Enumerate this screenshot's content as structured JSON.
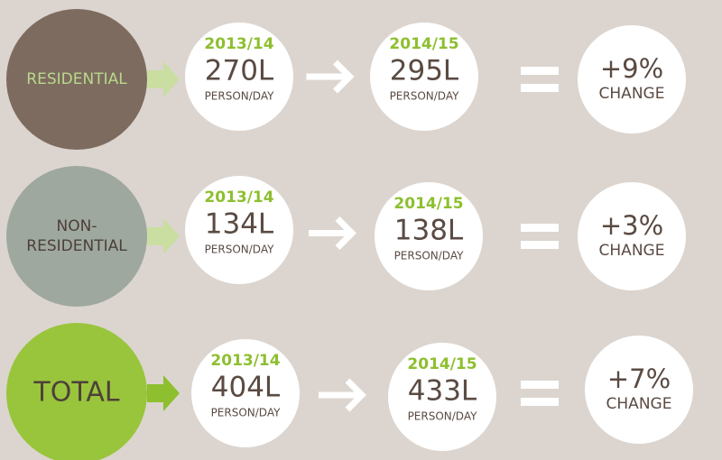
{
  "rows": [
    {
      "category": [
        "RESIDENTIAL"
      ],
      "year1": "2013/14",
      "value1": "270L",
      "unit1": "PERSON/DAY",
      "year2": "2014/15",
      "value2": "295L",
      "unit2": "PERSON/DAY",
      "change": "+9%",
      "change_label": "CHANGE"
    },
    {
      "category": [
        "NON-",
        "RESIDENTIAL"
      ],
      "year1": "2013/14",
      "value1": "134L",
      "unit1": "PERSON/DAY",
      "year2": "2014/15",
      "value2": "138L",
      "unit2": "PERSON/DAY",
      "change": "+3%",
      "change_label": "CHANGE"
    },
    {
      "category": [
        "TOTAL"
      ],
      "year1": "2013/14",
      "value1": "404L",
      "unit1": "PERSON/DAY",
      "year2": "2014/15",
      "value2": "433L",
      "unit2": "PERSON/DAY",
      "change": "+7%",
      "change_label": "CHANGE"
    }
  ]
}
